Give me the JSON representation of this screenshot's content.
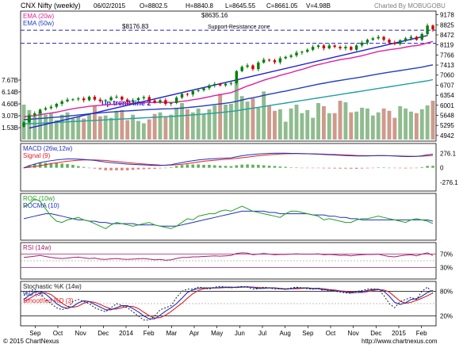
{
  "header": {
    "title": "CNX Nifty (weekly)",
    "date": "06/02/2015",
    "open": "O=8802.5",
    "high": "H=8840.8",
    "low": "L=8645.55",
    "close": "C=8661.05",
    "volume": "V=4.98B",
    "credit": "Charted By MOBUGOBU"
  },
  "footer": {
    "copyright": "© 2015 ChartNexus",
    "url": "http://www.chartnexus.com"
  },
  "panels": {
    "price": {
      "legend": [
        "EMA (20w)",
        "EMA (50w)"
      ],
      "legend_colors": [
        "#e020a0",
        "#2040c0"
      ]
    },
    "macd": {
      "legend": [
        "MACD (26w,12w)",
        "Signal (9)"
      ],
      "legend_colors": [
        "#2030c0",
        "#e02020"
      ]
    },
    "roc": {
      "legend": [
        "ROC (10w)",
        "ROCMA (10)"
      ],
      "legend_colors": [
        "#20a020",
        "#2030c0"
      ]
    },
    "rsi": {
      "legend": [
        "RSI (14w)"
      ],
      "legend_colors": [
        "#a02070"
      ]
    },
    "stoch": {
      "legend": [
        "Stochastic %K (14w)",
        "%D (3)",
        "Smoothed %D (3)"
      ],
      "legend_colors": [
        "#202020",
        "#2030c0",
        "#e02020"
      ]
    }
  },
  "annotations": {
    "level_high": "$8635.16",
    "level_low": "$8176.83",
    "support_resistance": "Support-Resistance zone",
    "trend_line": "Up trend line 2"
  },
  "colors": {
    "up_candle": "#008000",
    "down_candle": "#d00000",
    "vol_up": "#8fbc8f",
    "vol_down": "#cd9a8c",
    "ema20": "#e020a0",
    "ema50": "#2040c0",
    "ema_long": "#20a0a0",
    "trend": "#2020d0",
    "dashed": "#2020c0"
  },
  "chart_data": {
    "type": "candlestick",
    "x_ticks": [
      "Sep",
      "Oct",
      "Nov",
      "Dec",
      "2014",
      "Feb",
      "Mar",
      "Apr",
      "May",
      "Jun",
      "Jul",
      "Aug",
      "Sep",
      "Oct",
      "Nov",
      "Dec",
      "2015",
      "Feb"
    ],
    "price_ticks": [
      "9178",
      "8825",
      "8472",
      "8119",
      "7766",
      "7413",
      "7060",
      "6707",
      "6354",
      "6001",
      "5648",
      "5295",
      "4942"
    ],
    "price_ylim": [
      4800,
      9250
    ],
    "volume_ticks": [
      "7.67B",
      "6.14B",
      "4.60B",
      "3.07B",
      "1.53B"
    ],
    "volume_ylim": [
      0,
      9.2
    ],
    "macd_ticks": [
      "276.1",
      "0",
      "-276.1"
    ],
    "macd_ylim": [
      -400,
      420
    ],
    "rsi_ticks": [
      "70%",
      "30%"
    ],
    "stoch_ticks": [
      "80%",
      "20%"
    ],
    "hlines": [
      8635.16,
      8176.83
    ],
    "weeks": 76,
    "close": [
      5400,
      5650,
      5720,
      5850,
      5900,
      5950,
      6050,
      6140,
      6200,
      6210,
      6240,
      6180,
      6300,
      6200,
      6150,
      6180,
      6280,
      6300,
      6200,
      6120,
      6180,
      6250,
      6290,
      6170,
      6100,
      6180,
      6050,
      6080,
      6270,
      6400,
      6380,
      6500,
      6530,
      6600,
      6700,
      6750,
      6700,
      6760,
      6780,
      7200,
      7350,
      7400,
      7270,
      7500,
      7600,
      7580,
      7510,
      7650,
      7700,
      7750,
      7850,
      7880,
      7950,
      8050,
      8100,
      8000,
      8100,
      8050,
      8000,
      8050,
      7950,
      8100,
      8200,
      8300,
      8350,
      8400,
      8300,
      8200,
      8150,
      8280,
      8350,
      8400,
      8300,
      8500,
      8800,
      8660
    ],
    "volume": [
      4.5,
      3.8,
      3.0,
      3.6,
      3.2,
      3.4,
      2.5,
      3.2,
      3.5,
      2.7,
      3.0,
      2.7,
      3.3,
      4.4,
      3.0,
      3.1,
      2.8,
      3.7,
      3.8,
      2.5,
      3.2,
      2.4,
      2.1,
      2.6,
      3.3,
      3.5,
      3.0,
      3.2,
      4.1,
      4.7,
      3.9,
      3.5,
      4.0,
      3.3,
      3.9,
      4.4,
      5.9,
      4.5,
      4.6,
      7.7,
      5.6,
      4.9,
      5.3,
      4.1,
      6.2,
      4.4,
      3.7,
      3.9,
      2.3,
      4.0,
      4.5,
      3.4,
      3.8,
      2.8,
      4.7,
      4.3,
      3.4,
      3.4,
      5.0,
      4.8,
      3.5,
      3.6,
      4.1,
      4.0,
      3.1,
      3.5,
      4.0,
      3.7,
      2.8,
      4.3,
      4.0,
      3.6,
      3.4,
      3.9,
      4.4,
      5.0
    ],
    "ema20": [
      5600,
      5620,
      5640,
      5670,
      5700,
      5730,
      5760,
      5800,
      5840,
      5880,
      5910,
      5935,
      5965,
      5985,
      6000,
      6015,
      6030,
      6045,
      6055,
      6060,
      6070,
      6080,
      6095,
      6100,
      6100,
      6110,
      6105,
      6100,
      6115,
      6140,
      6160,
      6195,
      6225,
      6260,
      6300,
      6340,
      6375,
      6410,
      6445,
      6520,
      6600,
      6680,
      6740,
      6810,
      6880,
      6940,
      6990,
      7050,
      7100,
      7150,
      7210,
      7260,
      7320,
      7380,
      7430,
      7470,
      7520,
      7560,
      7600,
      7630,
      7660,
      7700,
      7740,
      7790,
      7840,
      7890,
      7920,
      7950,
      7975,
      8005,
      8040,
      8075,
      8095,
      8130,
      8190,
      8240
    ],
    "ema50": [
      5500,
      5510,
      5525,
      5540,
      5555,
      5570,
      5585,
      5600,
      5620,
      5640,
      5660,
      5680,
      5700,
      5720,
      5735,
      5750,
      5765,
      5780,
      5795,
      5805,
      5815,
      5825,
      5840,
      5850,
      5860,
      5870,
      5875,
      5880,
      5890,
      5905,
      5920,
      5940,
      5960,
      5980,
      6005,
      6030,
      6050,
      6075,
      6100,
      6140,
      6185,
      6230,
      6265,
      6305,
      6350,
      6390,
      6425,
      6465,
      6500,
      6540,
      6580,
      6620,
      6660,
      6700,
      6740,
      6775,
      6810,
      6845,
      6875,
      6905,
      6935,
      6965,
      6995,
      7030,
      7065,
      7100,
      7130,
      7160,
      7190,
      7220,
      7250,
      7280,
      7310,
      7340,
      7380,
      7420
    ],
    "ema_long": [
      5350,
      5355,
      5360,
      5370,
      5380,
      5390,
      5400,
      5410,
      5420,
      5430,
      5440,
      5450,
      5460,
      5470,
      5480,
      5490,
      5500,
      5510,
      5520,
      5530,
      5540,
      5550,
      5560,
      5570,
      5580,
      5590,
      5600,
      5610,
      5620,
      5635,
      5650,
      5665,
      5680,
      5695,
      5710,
      5725,
      5745,
      5765,
      5785,
      5810,
      5840,
      5870,
      5900,
      5930,
      5960,
      5990,
      6020,
      6050,
      6080,
      6110,
      6140,
      6170,
      6200,
      6230,
      6260,
      6290,
      6320,
      6350,
      6380,
      6410,
      6440,
      6470,
      6500,
      6530,
      6560,
      6590,
      6620,
      6650,
      6680,
      6710,
      6740,
      6770,
      6800,
      6830,
      6860,
      6900
    ],
    "trend_line": [
      [
        1,
        5200
      ],
      [
        74,
        8450
      ]
    ],
    "macd": [
      0,
      40,
      70,
      100,
      120,
      135,
      150,
      160,
      170,
      170,
      165,
      160,
      150,
      140,
      125,
      110,
      100,
      90,
      80,
      70,
      65,
      60,
      55,
      50,
      45,
      45,
      50,
      60,
      80,
      100,
      120,
      135,
      150,
      160,
      170,
      175,
      180,
      185,
      190,
      210,
      230,
      245,
      255,
      265,
      270,
      275,
      280,
      280,
      280,
      275,
      275,
      270,
      268,
      265,
      260,
      255,
      250,
      245,
      240,
      235,
      230,
      225,
      225,
      225,
      230,
      235,
      235,
      230,
      225,
      220,
      215,
      215,
      220,
      230,
      250,
      260
    ],
    "signal": [
      0,
      10,
      25,
      40,
      60,
      80,
      95,
      110,
      125,
      135,
      145,
      150,
      150,
      150,
      145,
      140,
      130,
      120,
      110,
      100,
      90,
      80,
      72,
      65,
      58,
      52,
      50,
      52,
      58,
      68,
      80,
      95,
      110,
      125,
      135,
      145,
      155,
      162,
      170,
      180,
      192,
      205,
      218,
      230,
      240,
      250,
      258,
      264,
      268,
      270,
      271,
      271,
      270,
      268,
      265,
      262,
      258,
      254,
      250,
      245,
      241,
      237,
      234,
      232,
      231,
      231,
      231,
      230,
      228,
      226,
      223,
      221,
      220,
      222,
      228,
      236
    ],
    "roc": [
      15,
      18,
      22,
      20,
      14,
      8,
      4,
      3,
      5,
      6,
      7,
      5,
      4,
      2,
      0,
      -2,
      1,
      3,
      2,
      1,
      0,
      1,
      2,
      3,
      1,
      0,
      -1,
      -2,
      0,
      3,
      6,
      5,
      8,
      9,
      10,
      10,
      12,
      13,
      12,
      14,
      16,
      14,
      12,
      11,
      10,
      9,
      8,
      7,
      10,
      12,
      12,
      11,
      10,
      9,
      8,
      5,
      6,
      5,
      4,
      3,
      3,
      5,
      6,
      6,
      7,
      8,
      7,
      6,
      5,
      4,
      3,
      5,
      6,
      5,
      4,
      2
    ],
    "rocma": [
      6,
      7,
      8,
      9,
      10,
      10,
      9,
      8,
      7,
      6,
      5,
      5,
      4,
      4,
      3,
      3,
      2,
      2,
      2,
      2,
      2,
      1,
      1,
      1,
      1,
      0,
      0,
      0,
      0,
      1,
      2,
      3,
      4,
      5,
      6,
      7,
      8,
      9,
      10,
      11,
      12,
      12,
      12,
      12,
      12,
      11,
      11,
      10,
      10,
      10,
      10,
      10,
      10,
      9,
      9,
      9,
      8,
      8,
      7,
      7,
      6,
      6,
      5,
      5,
      5,
      5,
      5,
      5,
      5,
      5,
      5,
      5,
      5,
      5,
      5,
      4
    ],
    "rsi": [
      60,
      62,
      64,
      66,
      63,
      60,
      58,
      57,
      58,
      60,
      61,
      59,
      57,
      58,
      55,
      54,
      56,
      57,
      55,
      54,
      55,
      56,
      57,
      55,
      53,
      54,
      52,
      53,
      57,
      60,
      60,
      62,
      62,
      63,
      64,
      65,
      64,
      65,
      66,
      72,
      74,
      73,
      68,
      70,
      72,
      70,
      68,
      69,
      69,
      70,
      71,
      70,
      70,
      70,
      71,
      68,
      69,
      68,
      66,
      67,
      65,
      67,
      68,
      69,
      69,
      70,
      66,
      63,
      62,
      65,
      67,
      68,
      65,
      70,
      74,
      66
    ],
    "stoch_k": [
      70,
      80,
      85,
      75,
      60,
      50,
      40,
      35,
      40,
      55,
      60,
      55,
      50,
      40,
      35,
      30,
      40,
      50,
      45,
      40,
      30,
      20,
      10,
      10,
      20,
      35,
      40,
      45,
      65,
      80,
      85,
      85,
      90,
      88,
      85,
      90,
      92,
      90,
      88,
      90,
      92,
      90,
      85,
      86,
      90,
      88,
      85,
      86,
      85,
      88,
      90,
      88,
      86,
      85,
      88,
      80,
      82,
      80,
      78,
      76,
      75,
      80,
      82,
      85,
      86,
      84,
      70,
      50,
      40,
      55,
      60,
      65,
      60,
      80,
      90,
      75
    ],
    "stoch_d": [
      60,
      70,
      78,
      80,
      73,
      62,
      50,
      42,
      38,
      43,
      52,
      57,
      55,
      48,
      42,
      35,
      35,
      40,
      45,
      45,
      38,
      30,
      20,
      13,
      13,
      22,
      32,
      40,
      50,
      63,
      77,
      83,
      87,
      88,
      88,
      88,
      89,
      90,
      90,
      89,
      90,
      91,
      89,
      87,
      87,
      88,
      88,
      86,
      85,
      86,
      88,
      88,
      88,
      86,
      86,
      84,
      83,
      81,
      80,
      78,
      76,
      77,
      79,
      82,
      84,
      85,
      80,
      68,
      53,
      48,
      52,
      60,
      62,
      68,
      77,
      82
    ],
    "stoch_sd": [
      55,
      62,
      70,
      76,
      77,
      72,
      62,
      51,
      43,
      41,
      44,
      51,
      55,
      53,
      48,
      42,
      37,
      37,
      40,
      43,
      43,
      38,
      29,
      21,
      15,
      16,
      22,
      31,
      41,
      51,
      63,
      74,
      82,
      86,
      88,
      88,
      88,
      89,
      89,
      90,
      90,
      90,
      90,
      89,
      88,
      88,
      88,
      87,
      86,
      86,
      86,
      87,
      88,
      87,
      87,
      86,
      84,
      83,
      81,
      80,
      78,
      77,
      77,
      79,
      82,
      84,
      83,
      78,
      67,
      56,
      51,
      53,
      58,
      63,
      69,
      76
    ],
    "rsi_bands": [
      70,
      30
    ],
    "stoch_bands": [
      80,
      20
    ]
  }
}
